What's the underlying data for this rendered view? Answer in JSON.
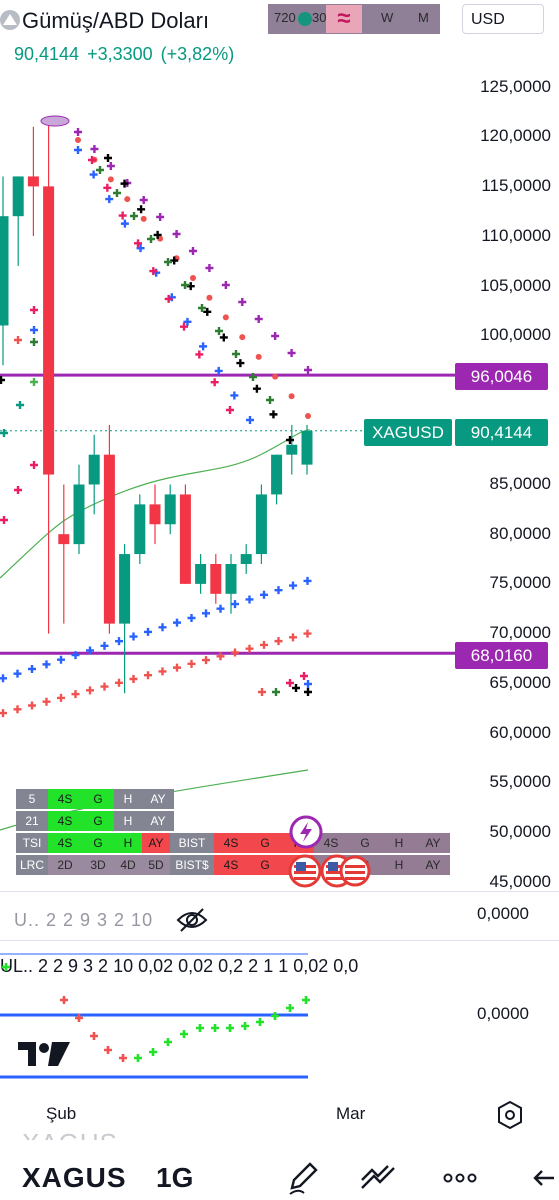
{
  "header": {
    "title": "Gümüş/ABD Doları",
    "timeframes": [
      "720",
      "30",
      "W",
      "M"
    ],
    "currency": "USD"
  },
  "price": {
    "last": "90,4144",
    "change": "+3,3300",
    "change_pct": "(+3,82%)"
  },
  "axis": {
    "labels": [
      "125,0000",
      "120,0000",
      "115,0000",
      "110,0000",
      "105,0000",
      "100,0000",
      "85,0000",
      "80,0000",
      "75,0000",
      "70,0000",
      "65,0000",
      "60,0000",
      "55,0000",
      "50,0000",
      "45,0000"
    ],
    "tags": {
      "level_high": "96,0046",
      "symbol_tag": "XAGUSD",
      "last_price": "90,4144",
      "level_low": "68,0160"
    }
  },
  "table": {
    "rows": [
      {
        "cells": [
          "5",
          "4S",
          "G",
          "H",
          "AY"
        ]
      },
      {
        "cells": [
          "21",
          "4S",
          "G",
          "H",
          "AY"
        ]
      },
      {
        "cells": [
          "TSI",
          "4S",
          "G",
          "H",
          "AY",
          "BIST",
          "4S",
          "G",
          "H",
          "4S",
          "G",
          "H",
          "AY"
        ]
      },
      {
        "cells": [
          "LRC",
          "2D",
          "3D",
          "4D",
          "5D",
          "BIST$",
          "4S",
          "G",
          "H",
          "4S",
          "G",
          "H",
          "AY"
        ]
      }
    ]
  },
  "indicator1": {
    "legend": "U.. 2 2 9 3 2 10",
    "zero": "0,0000"
  },
  "indicator2": {
    "legend": "UL..  2 2 9 3 2 10 0,02 0,02 0,2 2 1 1 0,02 0,0",
    "zero": "0,0000"
  },
  "dates": [
    "Şub",
    "Mar"
  ],
  "bottom": {
    "ticker_ghost": "XAGUS",
    "ticker": "XAGUS",
    "timeframe": "1G"
  },
  "icons": {
    "eye_off": "eye-off-icon",
    "settings": "settings-icon",
    "pencil": "pencil-icon",
    "lines": "trend-lines-icon",
    "more": "more-icon",
    "back": "back-icon",
    "flash": "flash-icon",
    "flag": "us-flag-icon"
  },
  "chart_data": {
    "type": "candlestick",
    "ylim": [
      43,
      130
    ],
    "candles": [
      {
        "o": 101,
        "h": 116,
        "l": 97,
        "c": 112
      },
      {
        "o": 112,
        "h": 116,
        "l": 107,
        "c": 116
      },
      {
        "o": 116,
        "h": 121,
        "l": 110,
        "c": 115
      },
      {
        "o": 115,
        "h": 122,
        "l": 70,
        "c": 86
      },
      {
        "o": 80,
        "h": 85,
        "l": 71,
        "c": 79
      },
      {
        "o": 79,
        "h": 87,
        "l": 78,
        "c": 85
      },
      {
        "o": 85,
        "h": 90,
        "l": 82,
        "c": 88
      },
      {
        "o": 88,
        "h": 91,
        "l": 70,
        "c": 71
      },
      {
        "o": 71,
        "h": 79,
        "l": 64,
        "c": 78
      },
      {
        "o": 78,
        "h": 84,
        "l": 77,
        "c": 83
      },
      {
        "o": 83,
        "h": 85,
        "l": 79,
        "c": 81
      },
      {
        "o": 81,
        "h": 85,
        "l": 80,
        "c": 84
      },
      {
        "o": 84,
        "h": 85,
        "l": 75,
        "c": 75
      },
      {
        "o": 75,
        "h": 78,
        "l": 74,
        "c": 77
      },
      {
        "o": 77,
        "h": 78,
        "l": 73,
        "c": 74
      },
      {
        "o": 74,
        "h": 78,
        "l": 72,
        "c": 77
      },
      {
        "o": 77,
        "h": 79,
        "l": 76,
        "c": 78
      },
      {
        "o": 78,
        "h": 85,
        "l": 77,
        "c": 84
      },
      {
        "o": 84,
        "h": 88,
        "l": 83,
        "c": 88
      },
      {
        "o": 88,
        "h": 91,
        "l": 86,
        "c": 89
      },
      {
        "o": 87,
        "h": 91,
        "l": 86,
        "c": 90.4
      }
    ],
    "horizontal_levels": [
      96.0046,
      68.016
    ],
    "last_price": 90.4144
  }
}
